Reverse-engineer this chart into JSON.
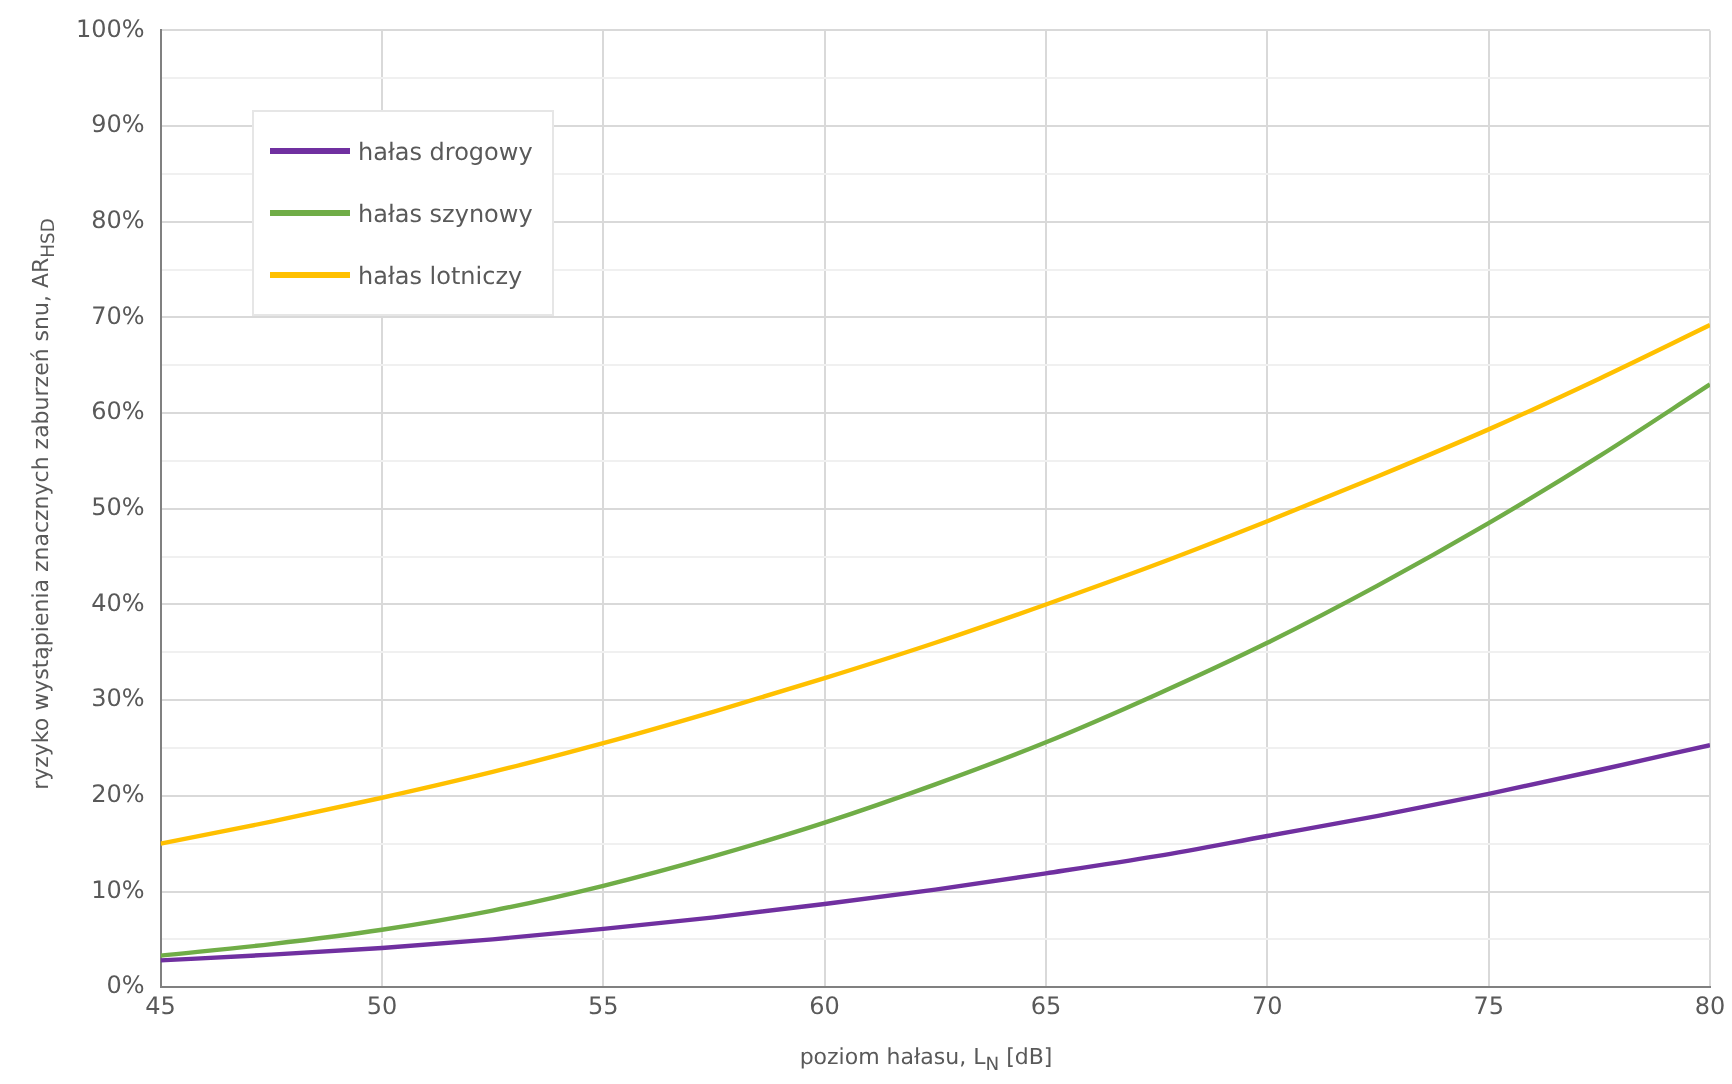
{
  "chart_data": {
    "type": "line",
    "xlabel": "poziom hałasu, L$_{N}$ [dB]",
    "ylabel": "ryzyko wystąpienia znacznych zaburzeń snu, AR$_{HSD}$",
    "x": [
      45,
      47.5,
      50,
      52.5,
      55,
      57.5,
      60,
      62.5,
      65,
      67.5,
      70,
      72.5,
      75,
      77.5,
      80
    ],
    "series": [
      {
        "name": "hałas drogowy",
        "color": "#7030a0",
        "values": [
          2.8,
          3.4,
          4.1,
          5.0,
          6.1,
          7.3,
          8.7,
          10.2,
          11.9,
          13.7,
          15.8,
          17.9,
          20.2,
          22.7,
          25.3
        ]
      },
      {
        "name": "hałas szynowy",
        "color": "#70ad47",
        "values": [
          3.3,
          4.5,
          6.0,
          8.0,
          10.6,
          13.7,
          17.2,
          21.2,
          25.6,
          30.6,
          36.0,
          42.0,
          48.5,
          55.5,
          63
        ]
      },
      {
        "name": "hałas lotniczy",
        "color": "#ffc000",
        "values": [
          15,
          17.3,
          19.8,
          22.5,
          25.5,
          28.8,
          32.3,
          36.0,
          40,
          44.2,
          48.7,
          53.4,
          58.3,
          63.6,
          69.2
        ]
      }
    ],
    "xlim": [
      45,
      80
    ],
    "xticks": [
      45,
      50,
      55,
      60,
      65,
      70,
      75,
      80
    ],
    "ylim": [
      0,
      100
    ],
    "yticks": [
      {
        "value": 0,
        "label": "0%"
      },
      {
        "value": 5,
        "label": null
      },
      {
        "value": 10,
        "label": "10%"
      },
      {
        "value": 15,
        "label": null
      },
      {
        "value": 20,
        "label": "20%"
      },
      {
        "value": 25,
        "label": null
      },
      {
        "value": 30,
        "label": "30%"
      },
      {
        "value": 35,
        "label": null
      },
      {
        "value": 40,
        "label": "40%"
      },
      {
        "value": 45,
        "label": null
      },
      {
        "value": 50,
        "label": "50%"
      },
      {
        "value": 55,
        "label": null
      },
      {
        "value": 60,
        "label": "60%"
      },
      {
        "value": 65,
        "label": null
      },
      {
        "value": 70,
        "label": "70%"
      },
      {
        "value": 75,
        "label": null
      },
      {
        "value": 80,
        "label": "80%"
      },
      {
        "value": 85,
        "label": null
      },
      {
        "value": 90,
        "label": "90%"
      },
      {
        "value": 95,
        "label": null
      },
      {
        "value": 100,
        "label": "100%"
      }
    ],
    "grid": true,
    "legend": "top left",
    "marker": "none",
    "line_style": "solid"
  }
}
